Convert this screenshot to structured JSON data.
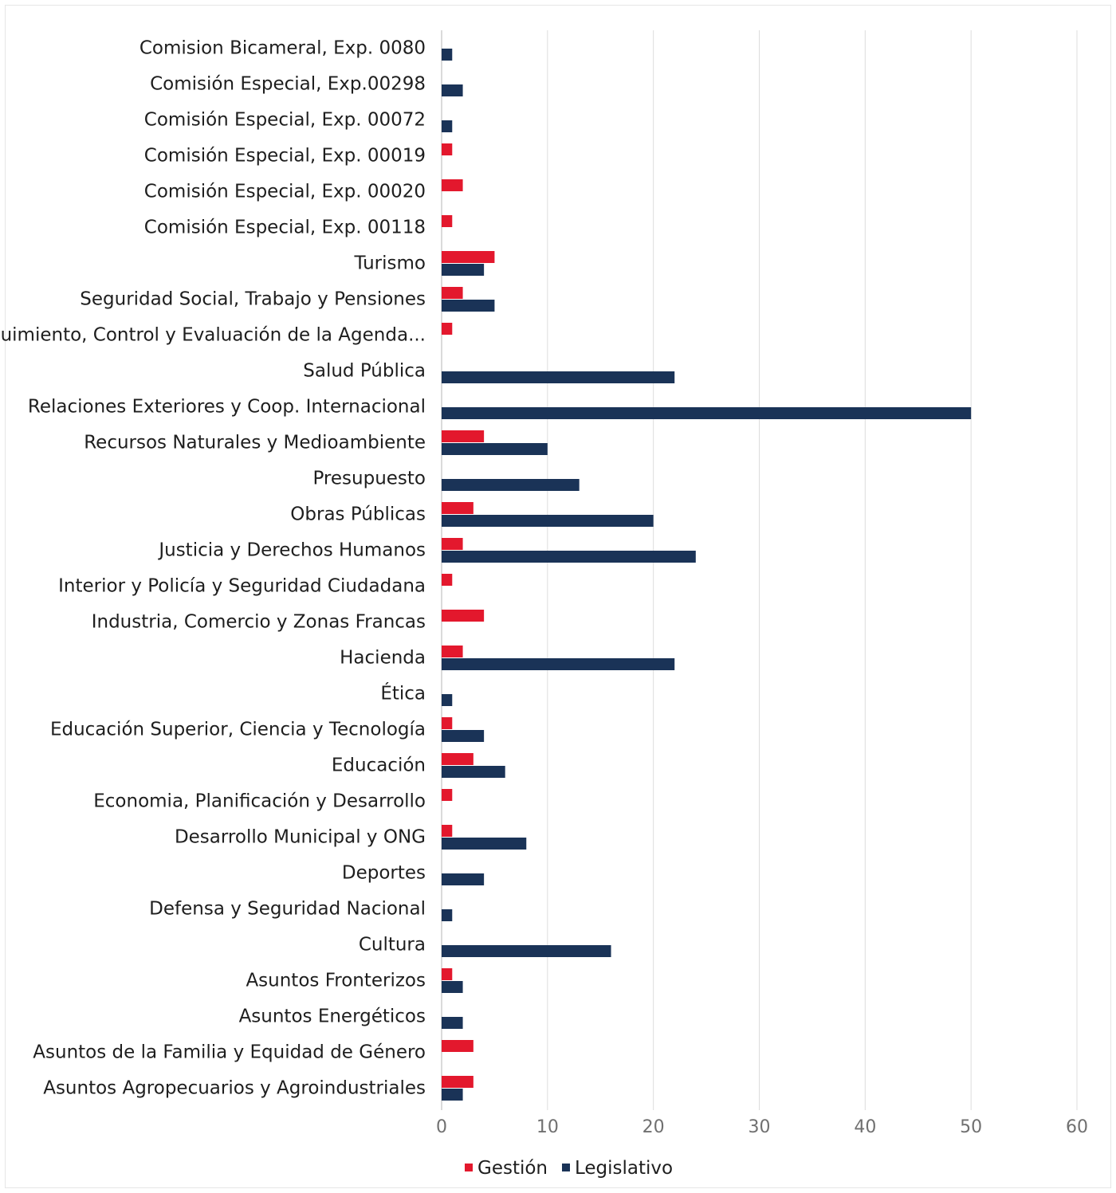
{
  "chart_data": {
    "type": "bar",
    "orientation": "horizontal",
    "categories": [
      "Comision Bicameral, Exp. 0080",
      "Comisión Especial, Exp.00298",
      "Comisión Especial, Exp. 00072",
      "Comisión Especial,  Exp. 00019",
      "Comisión Especial, Exp. 00020",
      "Comisión Especial, Exp. 00118",
      "Turismo",
      "Seguridad Social, Trabajo y Pensiones",
      "Seguimiento, Control y Evaluación de la Agenda...",
      "Salud Pública",
      "Relaciones Exteriores y Coop. Internacional",
      "Recursos Naturales y Medioambiente",
      "Presupuesto",
      "Obras Públicas",
      "Justicia y Derechos Humanos",
      "Interior y Policía y Seguridad Ciudadana",
      "Industria, Comercio y Zonas Francas",
      "Hacienda",
      "Ética",
      "Educación Superior, Ciencia y Tecnología",
      "Educación",
      "Economia, Planificación y Desarrollo",
      "Desarrollo Municipal y ONG",
      "Deportes",
      "Defensa y Seguridad Nacional",
      "Cultura",
      "Asuntos Fronterizos",
      "Asuntos Energéticos",
      "Asuntos de la Familia y Equidad de Género",
      "Asuntos Agropecuarios y Agroindustriales"
    ],
    "series": [
      {
        "name": "Gestión",
        "color": "#e3182d",
        "values": [
          0,
          0,
          0,
          1,
          2,
          1,
          5,
          2,
          1,
          0,
          0,
          4,
          0,
          3,
          2,
          1,
          4,
          2,
          0,
          1,
          3,
          1,
          1,
          0,
          0,
          0,
          1,
          0,
          3,
          3
        ]
      },
      {
        "name": "Legislativo",
        "color": "#1a3357",
        "values": [
          1,
          2,
          1,
          0,
          0,
          0,
          4,
          5,
          0,
          22,
          50,
          10,
          13,
          20,
          24,
          0,
          0,
          22,
          1,
          4,
          6,
          0,
          8,
          4,
          1,
          16,
          2,
          2,
          0,
          2
        ]
      }
    ],
    "xlim": [
      0,
      60
    ],
    "x_ticks": [
      "0",
      "10",
      "20",
      "30",
      "40",
      "50",
      "60"
    ],
    "grid": true,
    "legend_position": "bottom-center",
    "title": "",
    "xlabel": "",
    "ylabel": ""
  }
}
